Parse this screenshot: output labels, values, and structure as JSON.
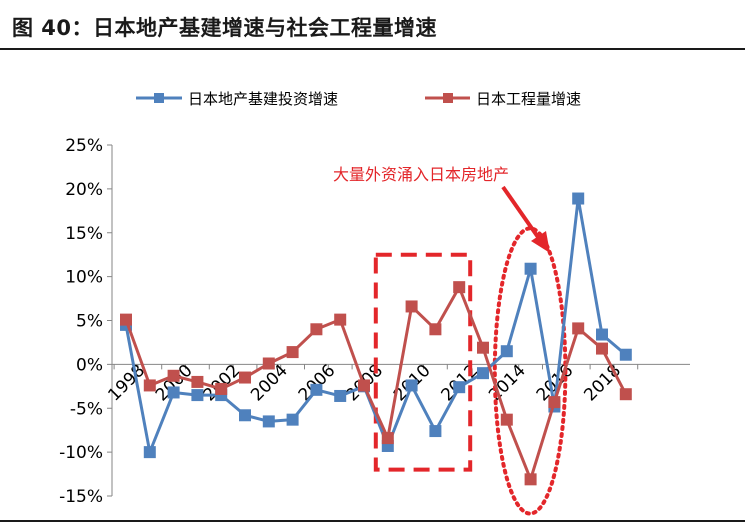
{
  "figure": {
    "title": "图 40：日本地产基建增速与社会工程量增速"
  },
  "annotation": {
    "text": "大量外资涌入日本房地产"
  },
  "colors": {
    "series_1": "#4f81bd",
    "series_2": "#c0504d",
    "annotation": "#e3262a",
    "grid": "#d9d9d9"
  },
  "chart_data": {
    "type": "line",
    "x": [
      1998,
      1999,
      2000,
      2001,
      2002,
      2003,
      2004,
      2005,
      2006,
      2007,
      2008,
      2009,
      2010,
      2011,
      2012,
      2013,
      2014,
      2015,
      2016,
      2017,
      2018,
      2019
    ],
    "x_tick_labels": [
      "1998",
      "2000",
      "2002",
      "2004",
      "2006",
      "2008",
      "2010",
      "2012",
      "2014",
      "2016",
      "2018"
    ],
    "y_tick_labels": [
      "25%",
      "20%",
      "15%",
      "10%",
      "5%",
      "0%",
      "-5%",
      "-10%",
      "-15%"
    ],
    "ylim": [
      -15,
      25
    ],
    "y_unit": "%",
    "series": [
      {
        "name": "日本地产基建投资增速",
        "values": [
          4.5,
          -10.0,
          -3.2,
          -3.5,
          -3.5,
          -5.8,
          -6.5,
          -6.3,
          -2.9,
          -3.6,
          -2.5,
          -9.3,
          -2.4,
          -7.6,
          -2.6,
          -1.0,
          1.5,
          10.9,
          -4.8,
          18.9,
          3.4,
          1.1
        ]
      },
      {
        "name": "日本工程量增速",
        "values": [
          5.1,
          -2.4,
          -1.3,
          -2.0,
          -2.8,
          -1.5,
          0.1,
          1.4,
          4.0,
          5.1,
          -2.4,
          -8.4,
          6.6,
          4.0,
          8.8,
          1.9,
          -6.3,
          -13.1,
          -4.3,
          4.1,
          1.8,
          -3.4
        ]
      }
    ],
    "legend": "top",
    "grid": false,
    "highlights": [
      {
        "kind": "dashed-rectangle",
        "x_range": [
          2009,
          2012
        ]
      },
      {
        "kind": "dotted-ellipse",
        "x_range": [
          2014,
          2016
        ]
      }
    ]
  }
}
